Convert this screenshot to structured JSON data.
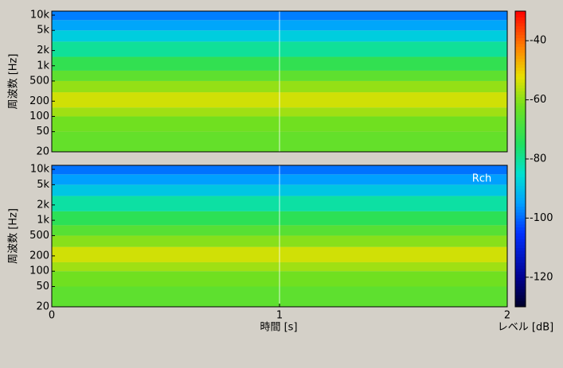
{
  "chart_data": {
    "type": "spectrogram",
    "xlabel": "時間 [s]",
    "xlim": [
      0,
      2
    ],
    "xticks": [
      0,
      1,
      2
    ],
    "colorbar": {
      "label": "レベル [dB]",
      "zlim": [
        -130,
        -30
      ],
      "zticks": [
        -40,
        -60,
        -80,
        -100,
        -120
      ],
      "colorscale": [
        {
          "value": -130,
          "color": "#000028"
        },
        {
          "value": -120,
          "color": "#000090"
        },
        {
          "value": -105,
          "color": "#0030ff"
        },
        {
          "value": -95,
          "color": "#00a0ff"
        },
        {
          "value": -85,
          "color": "#00e0d0"
        },
        {
          "value": -75,
          "color": "#20e060"
        },
        {
          "value": -62,
          "color": "#70e020"
        },
        {
          "value": -52,
          "color": "#e8e000"
        },
        {
          "value": -42,
          "color": "#ff8000"
        },
        {
          "value": -30,
          "color": "#ff0000"
        }
      ]
    },
    "panels": [
      {
        "ylabel": "周波数 [Hz]",
        "ylim": [
          20,
          12000
        ],
        "yticks": [
          20,
          50,
          100,
          200,
          500,
          {
            "value": 1000,
            "label": "1k"
          },
          {
            "value": 2000,
            "label": "2k"
          },
          {
            "value": 5000,
            "label": "5k"
          },
          {
            "value": 10000,
            "label": "10k"
          }
        ],
        "bins": [
          20,
          50,
          100,
          150,
          300,
          500,
          800,
          1500,
          3000,
          5000,
          8000,
          12000
        ],
        "levels": [
          -64,
          -62,
          -58,
          -54,
          -59,
          -65,
          -72,
          -80,
          -88,
          -94,
          -98
        ]
      },
      {
        "ylabel": "周波数 [Hz]",
        "annotation": "Rch",
        "ylim": [
          20,
          12000
        ],
        "yticks": [
          20,
          50,
          100,
          200,
          500,
          {
            "value": 1000,
            "label": "1k"
          },
          {
            "value": 2000,
            "label": "2k"
          },
          {
            "value": 5000,
            "label": "5k"
          },
          {
            "value": 10000,
            "label": "10k"
          }
        ],
        "bins": [
          20,
          50,
          100,
          150,
          300,
          500,
          800,
          1500,
          3000,
          5000,
          8000,
          12000
        ],
        "levels": [
          -65,
          -62,
          -58,
          -54,
          -60,
          -66,
          -73,
          -81,
          -89,
          -95,
          -99
        ]
      }
    ]
  }
}
